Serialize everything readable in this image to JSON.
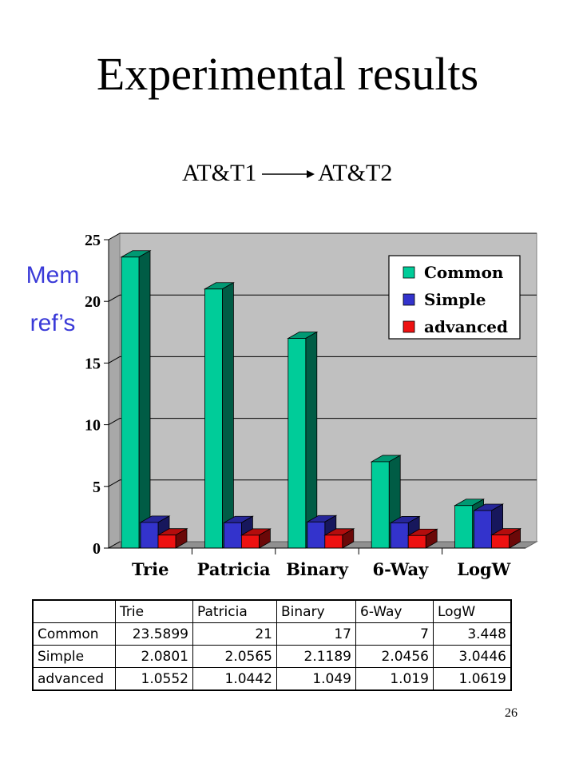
{
  "slide": {
    "title": "Experimental results",
    "transition_from": "AT&T1",
    "transition_to": "AT&T2",
    "ylabel_line1": "Mem",
    "ylabel_line2": "ref’s",
    "page_number": "26"
  },
  "chart_data": {
    "type": "bar",
    "categories": [
      "Trie",
      "Patricia",
      "Binary",
      "6-Way",
      "LogW"
    ],
    "series": [
      {
        "name": "Common",
        "values": [
          23.5899,
          21,
          17,
          7,
          3.448
        ],
        "color": "#00cc99"
      },
      {
        "name": "Simple",
        "values": [
          2.0801,
          2.0565,
          2.1189,
          2.0456,
          3.0446
        ],
        "color": "#3333cc"
      },
      {
        "name": "advanced",
        "values": [
          1.0552,
          1.0442,
          1.049,
          1.019,
          1.0619
        ],
        "color": "#ee1111"
      }
    ],
    "yticks": [
      0,
      5,
      10,
      15,
      20,
      25
    ],
    "ylim": [
      0,
      25
    ],
    "grid": true,
    "legend_position": "top-right"
  },
  "table": {
    "header": [
      "",
      "Trie",
      "Patricia",
      "Binary",
      "6-Way",
      "LogW"
    ],
    "rows": [
      [
        "Common",
        "23.5899",
        "21",
        "17",
        "7",
        "3.448"
      ],
      [
        "Simple",
        "2.0801",
        "2.0565",
        "2.1189",
        "2.0456",
        "3.0446"
      ],
      [
        "advanced",
        "1.0552",
        "1.0442",
        "1.049",
        "1.019",
        "1.0619"
      ]
    ]
  }
}
